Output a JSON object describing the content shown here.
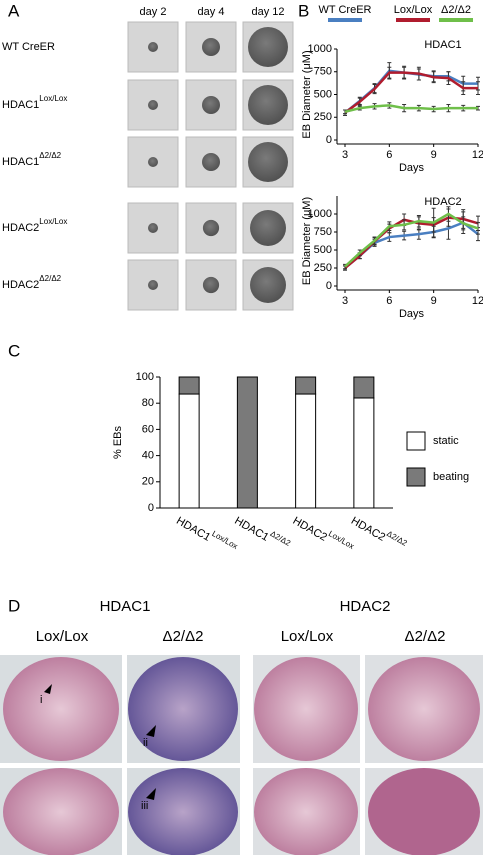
{
  "panel_a": {
    "label": "A",
    "columns": [
      "day 2",
      "day 4",
      "day 12"
    ],
    "rows": [
      {
        "name": "WT CreER",
        "sup": ""
      },
      {
        "name": "HDAC1",
        "sup": "Lox/Lox"
      },
      {
        "name": "HDAC1",
        "sup": "Δ2/Δ2"
      },
      {
        "name": "HDAC2",
        "sup": "Lox/Lox"
      },
      {
        "name": "HDAC2",
        "sup": "Δ2/Δ2"
      }
    ]
  },
  "panel_b": {
    "label": "B"
  },
  "panel_c": {
    "label": "C"
  },
  "chart_data": [
    {
      "type": "line",
      "title": "HDAC1",
      "y_label": "EB Diameter (μM)",
      "x_label": "Days",
      "x": [
        3,
        4,
        5,
        6,
        7,
        8,
        9,
        10,
        11,
        12
      ],
      "xlim": [
        3,
        12
      ],
      "xticks": [
        3,
        6,
        9,
        12
      ],
      "ylim": [
        0,
        1000
      ],
      "yticks": [
        0,
        250,
        500,
        750,
        1000
      ],
      "series": [
        {
          "name": "WT CreER",
          "color": "#4a7fc1",
          "values": [
            300,
            430,
            570,
            760,
            740,
            720,
            700,
            700,
            620,
            620
          ],
          "errors": [
            30,
            40,
            50,
            90,
            70,
            60,
            60,
            50,
            80,
            70
          ]
        },
        {
          "name": "Lox/Lox",
          "color": "#b01c2e",
          "values": [
            300,
            420,
            560,
            740,
            740,
            730,
            690,
            680,
            570,
            570
          ],
          "errors": [
            30,
            40,
            50,
            60,
            60,
            70,
            60,
            70,
            70,
            70
          ]
        },
        {
          "name": "Δ2/Δ2",
          "color": "#6fbf4a",
          "values": [
            310,
            350,
            370,
            380,
            350,
            350,
            340,
            350,
            350,
            350
          ],
          "errors": [
            20,
            20,
            30,
            30,
            40,
            30,
            30,
            40,
            30,
            20
          ]
        }
      ]
    },
    {
      "type": "line",
      "title": "HDAC2",
      "y_label": "EB Diameter (μM)",
      "x_label": "Days",
      "x": [
        3,
        4,
        5,
        6,
        7,
        8,
        9,
        10,
        11,
        12
      ],
      "xlim": [
        3,
        12
      ],
      "xticks": [
        3,
        6,
        9,
        12
      ],
      "ylim": [
        0,
        1250
      ],
      "yticks": [
        0,
        250,
        500,
        750,
        1000
      ],
      "series": [
        {
          "color": "#4a7fc1",
          "values": [
            250,
            420,
            600,
            680,
            700,
            720,
            750,
            800,
            880,
            720
          ],
          "errors": [
            30,
            40,
            50,
            60,
            60,
            70,
            80,
            150,
            150,
            90
          ]
        },
        {
          "color": "#b01c2e",
          "values": [
            250,
            420,
            620,
            800,
            920,
            870,
            850,
            950,
            930,
            870
          ],
          "errors": [
            30,
            40,
            50,
            60,
            80,
            90,
            100,
            120,
            130,
            100
          ]
        },
        {
          "color": "#6fbf4a",
          "values": [
            270,
            460,
            630,
            830,
            850,
            900,
            880,
            1000,
            870,
            800
          ],
          "errors": [
            30,
            40,
            50,
            60,
            70,
            80,
            200,
            100,
            90,
            80
          ]
        }
      ]
    },
    {
      "type": "stacked_bar",
      "y_label": "% EBs",
      "categories": [
        "HDAC1",
        "HDAC1",
        "HDAC2",
        "HDAC2"
      ],
      "category_superscripts": [
        "Lox/Lox",
        "Δ2/Δ2",
        "Lox/Lox",
        "Δ2/Δ2"
      ],
      "ylim": [
        0,
        100
      ],
      "yticks": [
        0,
        20,
        40,
        60,
        80,
        100
      ],
      "series": [
        {
          "name": "static",
          "color": "#ffffff",
          "values": [
            87,
            0,
            87,
            84
          ]
        },
        {
          "name": "beating",
          "color": "#7a7a7a",
          "values": [
            13,
            100,
            13,
            16
          ]
        }
      ]
    }
  ],
  "panel_d": {
    "label": "D",
    "groups": [
      "HDAC1",
      "HDAC2"
    ],
    "columns": [
      "Lox/Lox",
      "Δ2/Δ2",
      "Lox/Lox",
      "Δ2/Δ2"
    ],
    "annotations": [
      "i",
      "ii",
      "iii"
    ]
  }
}
